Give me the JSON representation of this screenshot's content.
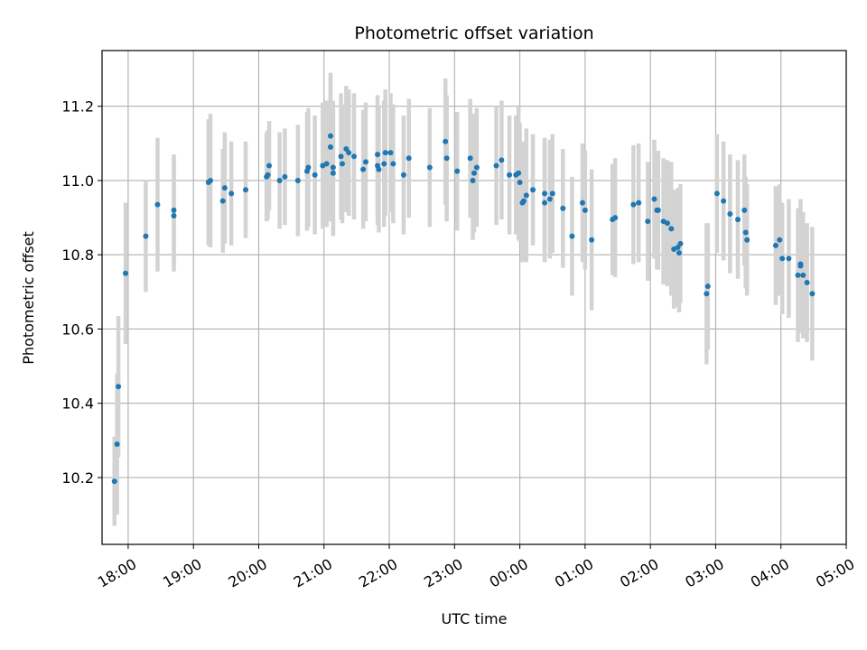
{
  "chart_data": {
    "type": "scatter",
    "title": "Photometric offset variation",
    "xlabel": "UTC time",
    "ylabel": "Photometric offset",
    "grid": true,
    "x_unit": "hours since 18:00 UTC",
    "xlim": [
      -0.4,
      11.0
    ],
    "ylim": [
      10.02,
      11.35
    ],
    "x_ticks": [
      {
        "value": 0,
        "label": "18:00"
      },
      {
        "value": 1,
        "label": "19:00"
      },
      {
        "value": 2,
        "label": "20:00"
      },
      {
        "value": 3,
        "label": "21:00"
      },
      {
        "value": 4,
        "label": "22:00"
      },
      {
        "value": 5,
        "label": "23:00"
      },
      {
        "value": 6,
        "label": "00:00"
      },
      {
        "value": 7,
        "label": "01:00"
      },
      {
        "value": 8,
        "label": "02:00"
      },
      {
        "value": 9,
        "label": "03:00"
      },
      {
        "value": 10,
        "label": "04:00"
      },
      {
        "value": 11,
        "label": "05:00"
      }
    ],
    "y_ticks": [
      {
        "value": 10.2,
        "label": "10.2"
      },
      {
        "value": 10.4,
        "label": "10.4"
      },
      {
        "value": 10.6,
        "label": "10.6"
      },
      {
        "value": 10.8,
        "label": "10.8"
      },
      {
        "value": 11.0,
        "label": "11.0"
      },
      {
        "value": 11.2,
        "label": "11.2"
      }
    ],
    "marker_color": "#1f77b4",
    "errorbar_color": "#d3d3d3",
    "series": [
      {
        "name": "offset",
        "points": [
          [
            -0.21,
            10.19,
            0.12
          ],
          [
            -0.17,
            10.29,
            0.19
          ],
          [
            -0.15,
            10.445,
            0.19
          ],
          [
            -0.04,
            10.75,
            0.19
          ],
          [
            0.27,
            10.85,
            0.15
          ],
          [
            0.45,
            10.935,
            0.18
          ],
          [
            0.7,
            10.905,
            0.15
          ],
          [
            0.7,
            10.92,
            0.15
          ],
          [
            1.23,
            10.995,
            0.17
          ],
          [
            1.26,
            11.0,
            0.18
          ],
          [
            1.45,
            10.945,
            0.14
          ],
          [
            1.48,
            10.98,
            0.15
          ],
          [
            1.58,
            10.965,
            0.14
          ],
          [
            1.8,
            10.975,
            0.13
          ],
          [
            2.12,
            11.01,
            0.12
          ],
          [
            2.14,
            11.015,
            0.12
          ],
          [
            2.16,
            11.04,
            0.12
          ],
          [
            2.32,
            11.0,
            0.13
          ],
          [
            2.4,
            11.01,
            0.13
          ],
          [
            2.6,
            11.0,
            0.15
          ],
          [
            2.74,
            11.025,
            0.16
          ],
          [
            2.76,
            11.035,
            0.16
          ],
          [
            2.86,
            11.015,
            0.16
          ],
          [
            2.98,
            11.04,
            0.17
          ],
          [
            3.04,
            11.045,
            0.17
          ],
          [
            3.1,
            11.12,
            0.16
          ],
          [
            3.1,
            11.09,
            0.2
          ],
          [
            3.14,
            11.035,
            0.18
          ],
          [
            3.14,
            11.02,
            0.17
          ],
          [
            3.26,
            11.065,
            0.17
          ],
          [
            3.28,
            11.045,
            0.16
          ],
          [
            3.34,
            11.085,
            0.17
          ],
          [
            3.38,
            11.075,
            0.17
          ],
          [
            3.46,
            11.065,
            0.17
          ],
          [
            3.6,
            11.03,
            0.16
          ],
          [
            3.64,
            11.05,
            0.16
          ],
          [
            3.82,
            11.07,
            0.16
          ],
          [
            3.82,
            11.04,
            0.16
          ],
          [
            3.84,
            11.03,
            0.17
          ],
          [
            3.92,
            11.045,
            0.17
          ],
          [
            3.94,
            11.075,
            0.17
          ],
          [
            4.02,
            11.075,
            0.16
          ],
          [
            4.06,
            11.045,
            0.16
          ],
          [
            4.22,
            11.015,
            0.16
          ],
          [
            4.3,
            11.06,
            0.16
          ],
          [
            4.62,
            11.035,
            0.16
          ],
          [
            4.86,
            11.105,
            0.17
          ],
          [
            4.88,
            11.06,
            0.17
          ],
          [
            5.04,
            11.025,
            0.16
          ],
          [
            5.24,
            11.06,
            0.16
          ],
          [
            5.28,
            11.0,
            0.16
          ],
          [
            5.3,
            11.02,
            0.16
          ],
          [
            5.34,
            11.035,
            0.16
          ],
          [
            5.64,
            11.04,
            0.16
          ],
          [
            5.72,
            11.055,
            0.16
          ],
          [
            5.84,
            11.015,
            0.16
          ],
          [
            5.94,
            11.015,
            0.16
          ],
          [
            5.98,
            11.02,
            0.18
          ],
          [
            6.0,
            10.995,
            0.16
          ],
          [
            6.04,
            10.94,
            0.16
          ],
          [
            6.06,
            10.945,
            0.16
          ],
          [
            6.1,
            10.96,
            0.18
          ],
          [
            6.2,
            10.975,
            0.15
          ],
          [
            6.38,
            10.965,
            0.15
          ],
          [
            6.38,
            10.94,
            0.16
          ],
          [
            6.46,
            10.95,
            0.16
          ],
          [
            6.5,
            10.965,
            0.16
          ],
          [
            6.66,
            10.925,
            0.16
          ],
          [
            6.8,
            10.85,
            0.16
          ],
          [
            6.96,
            10.94,
            0.16
          ],
          [
            7.0,
            10.92,
            0.16
          ],
          [
            7.1,
            10.84,
            0.19
          ],
          [
            7.42,
            10.895,
            0.15
          ],
          [
            7.46,
            10.9,
            0.16
          ],
          [
            7.74,
            10.935,
            0.16
          ],
          [
            7.82,
            10.94,
            0.16
          ],
          [
            7.96,
            10.89,
            0.16
          ],
          [
            8.06,
            10.95,
            0.16
          ],
          [
            8.1,
            10.92,
            0.16
          ],
          [
            8.12,
            10.92,
            0.16
          ],
          [
            8.2,
            10.89,
            0.17
          ],
          [
            8.26,
            10.885,
            0.17
          ],
          [
            8.32,
            10.87,
            0.18
          ],
          [
            8.36,
            10.815,
            0.16
          ],
          [
            8.42,
            10.82,
            0.16
          ],
          [
            8.44,
            10.805,
            0.16
          ],
          [
            8.46,
            10.83,
            0.16
          ],
          [
            8.86,
            10.695,
            0.19
          ],
          [
            8.88,
            10.715,
            0.17
          ],
          [
            9.02,
            10.965,
            0.16
          ],
          [
            9.12,
            10.945,
            0.16
          ],
          [
            9.22,
            10.91,
            0.16
          ],
          [
            9.34,
            10.895,
            0.16
          ],
          [
            9.44,
            10.92,
            0.15
          ],
          [
            9.46,
            10.86,
            0.15
          ],
          [
            9.48,
            10.84,
            0.15
          ],
          [
            9.92,
            10.825,
            0.16
          ],
          [
            9.98,
            10.84,
            0.15
          ],
          [
            10.02,
            10.79,
            0.15
          ],
          [
            10.12,
            10.79,
            0.16
          ],
          [
            10.26,
            10.745,
            0.18
          ],
          [
            10.3,
            10.775,
            0.16
          ],
          [
            10.3,
            10.77,
            0.18
          ],
          [
            10.34,
            10.745,
            0.17
          ],
          [
            10.4,
            10.725,
            0.16
          ],
          [
            10.48,
            10.695,
            0.18
          ]
        ]
      }
    ]
  }
}
